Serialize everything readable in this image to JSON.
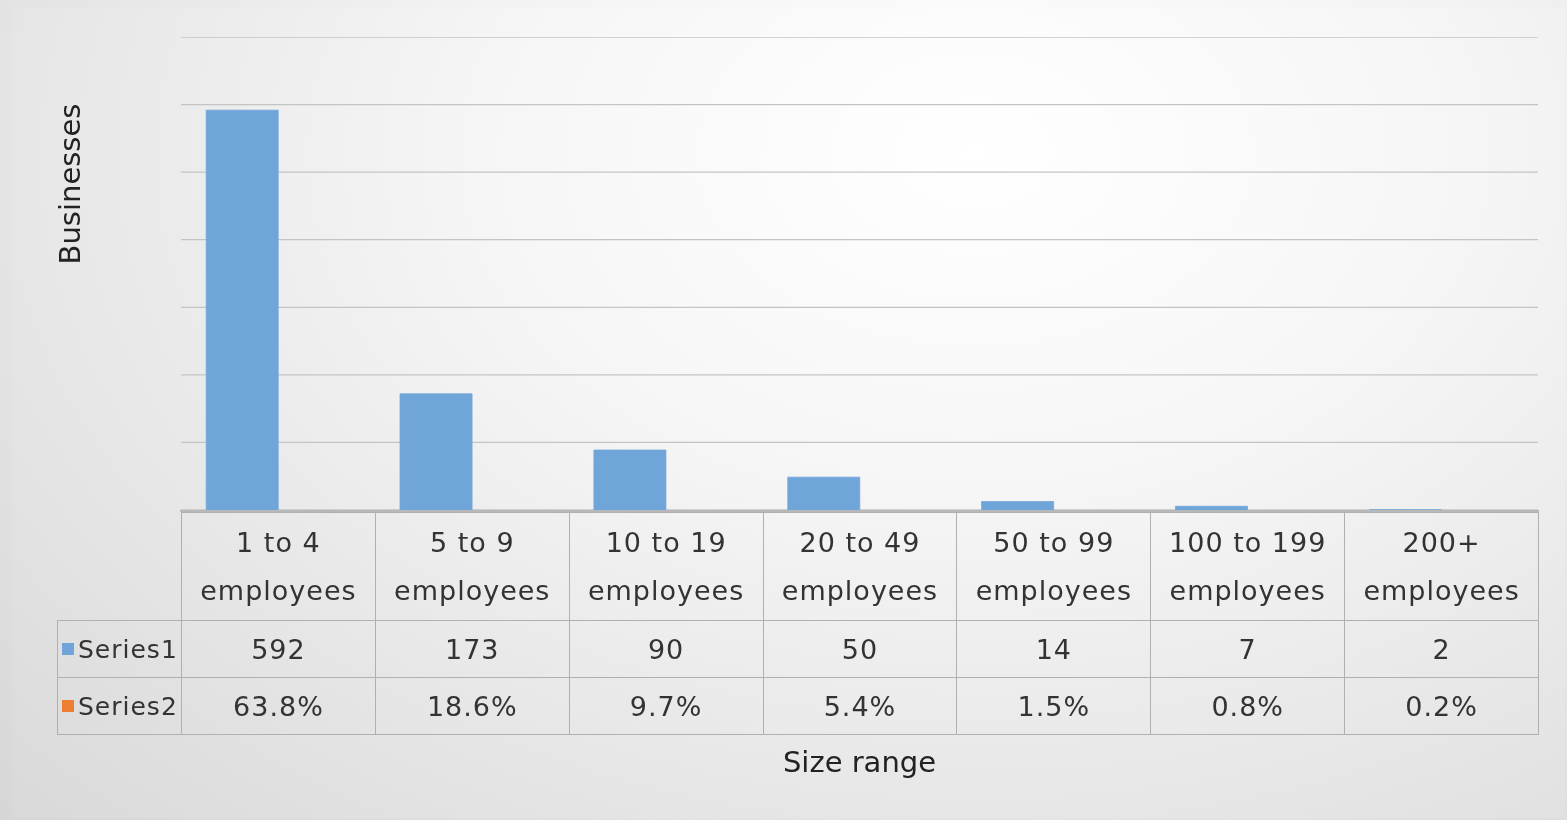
{
  "chart_data": {
    "type": "bar",
    "xlabel": "Size range",
    "ylabel": "Businesses",
    "categories": [
      "1 to 4 employees",
      "5 to 9 employees",
      "10 to 19 employees",
      "20 to 49 employees",
      "50 to 99 employees",
      "100 to 199 employees",
      "200+ employees"
    ],
    "series": [
      {
        "name": "Series1",
        "color": "#70a5d9",
        "values": [
          592,
          173,
          90,
          50,
          14,
          7,
          2
        ]
      },
      {
        "name": "Series2",
        "color": "#ed7d31",
        "values": [
          0.638,
          0.186,
          0.097,
          0.054,
          0.015,
          0.008,
          0.002
        ],
        "value_labels": [
          "63.8%",
          "18.6%",
          "9.7%",
          "5.4%",
          "1.5%",
          "0.8%",
          "0.2%"
        ]
      }
    ],
    "ylim": [
      0,
      700
    ],
    "yticks": [
      {
        "value": 0,
        "label": null
      },
      {
        "value": 100,
        "label": null
      },
      {
        "value": 200,
        "label": null
      },
      {
        "value": 300,
        "label": null
      },
      {
        "value": 400,
        "label": null
      },
      {
        "value": 500,
        "label": null
      },
      {
        "value": 600,
        "label": null
      },
      {
        "value": 700,
        "label": null
      }
    ],
    "grid": "y",
    "tick_labels": "x",
    "data_labels": true,
    "legend": "bottom left"
  }
}
